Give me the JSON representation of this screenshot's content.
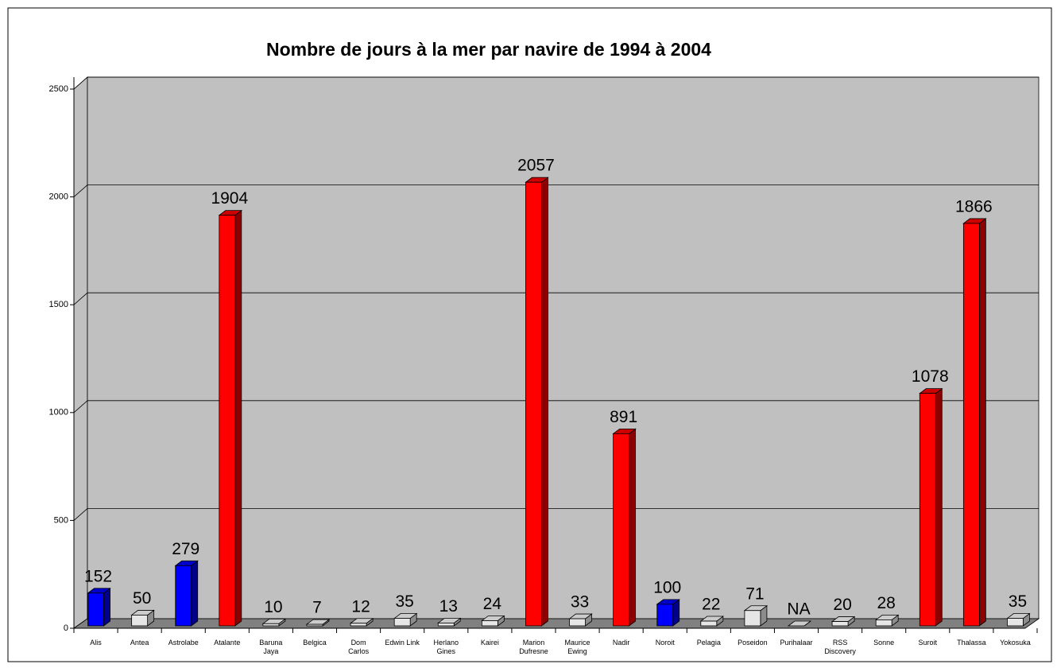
{
  "chart_data": {
    "type": "bar3d",
    "title": "Nombre de jours à la mer par navire de 1994 à 2004",
    "categories": [
      "Alis",
      "Antea",
      "Astrolabe",
      "Atalante",
      "Baruna Jaya",
      "Belgica",
      "Dom Carlos",
      "Edwin Link",
      "Herlano Gines",
      "Kairei",
      "Marion Dufresne",
      "Maurice Ewing",
      "Nadir",
      "Noroit",
      "Pelagia",
      "Poseidon",
      "Purihalaar",
      "RSS Discovery",
      "Sonne",
      "Suroit",
      "Thalassa",
      "Yokosuka"
    ],
    "values": [
      152,
      50,
      279,
      1904,
      10,
      7,
      12,
      35,
      13,
      24,
      2057,
      33,
      891,
      100,
      22,
      71,
      null,
      20,
      28,
      1078,
      1866,
      35
    ],
    "value_labels": [
      "152",
      "50",
      "279",
      "1904",
      "10",
      "7",
      "12",
      "35",
      "13",
      "24",
      "2057",
      "33",
      "891",
      "100",
      "22",
      "71",
      "NA",
      "20",
      "28",
      "1078",
      "1866",
      "35"
    ],
    "colors": [
      "#0000ff",
      "#ffffff",
      "#0000ff",
      "#ff0000",
      "#ffffff",
      "#ffffff",
      "#ffffff",
      "#ffffff",
      "#ffffff",
      "#ffffff",
      "#ff0000",
      "#ffffff",
      "#ff0000",
      "#0000ff",
      "#ffffff",
      "#ffffff",
      "#ffffff",
      "#ffffff",
      "#ffffff",
      "#ff0000",
      "#ff0000",
      "#ffffff"
    ],
    "ylim": [
      0,
      2500
    ],
    "yticks": [
      0,
      500,
      1000,
      1500,
      2000,
      2500
    ],
    "grid": true
  }
}
